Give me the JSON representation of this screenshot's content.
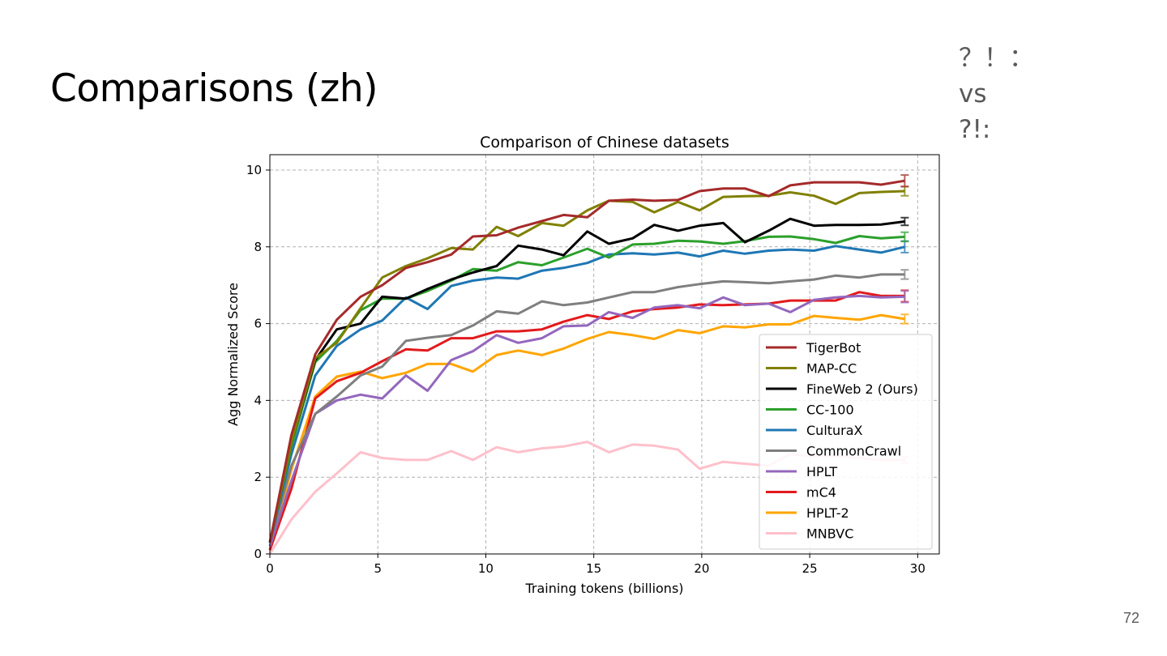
{
  "slide": {
    "title": "Comparisons (zh)",
    "corner_note": [
      "？！：",
      "vs",
      "?!:"
    ],
    "page_number": "72"
  },
  "chart_data": {
    "type": "line",
    "title": "Comparison of Chinese datasets",
    "xlabel": "Training tokens (billions)",
    "ylabel": "Agg Normalized Score",
    "xlim": [
      0,
      31
    ],
    "ylim": [
      0,
      10.4
    ],
    "xticks": [
      0,
      5,
      10,
      15,
      20,
      25,
      30
    ],
    "yticks": [
      0,
      2,
      4,
      6,
      8,
      10
    ],
    "grid": true,
    "legend_position": "lower-right",
    "x": [
      0,
      1,
      2.1,
      3.1,
      4.2,
      5.2,
      6.3,
      7.3,
      8.4,
      9.4,
      10.5,
      11.5,
      12.6,
      13.6,
      14.7,
      15.7,
      16.8,
      17.8,
      18.9,
      19.9,
      21,
      22,
      23.1,
      24.1,
      25.2,
      26.2,
      27.3,
      28.3,
      29.4
    ],
    "series": [
      {
        "name": "TigerBot",
        "color": "#a52a2a",
        "error": 0.15,
        "values": [
          0.3,
          3.1,
          5.2,
          6.1,
          6.7,
          7.0,
          7.45,
          7.6,
          7.8,
          8.27,
          8.3,
          8.5,
          8.67,
          8.83,
          8.77,
          9.2,
          9.23,
          9.2,
          9.22,
          9.45,
          9.52,
          9.52,
          9.32,
          9.6,
          9.68,
          9.68,
          9.68,
          9.62,
          9.72
        ]
      },
      {
        "name": "MAP-CC",
        "color": "#808000",
        "error": 0.12,
        "values": [
          0.3,
          2.9,
          5.1,
          5.5,
          6.4,
          7.2,
          7.5,
          7.7,
          7.97,
          7.93,
          8.52,
          8.28,
          8.62,
          8.55,
          8.95,
          9.2,
          9.17,
          8.9,
          9.17,
          8.95,
          9.3,
          9.32,
          9.33,
          9.42,
          9.33,
          9.12,
          9.4,
          9.43,
          9.45
        ]
      },
      {
        "name": "FineWeb 2 (Ours)",
        "color": "#000000",
        "error": 0.1,
        "values": [
          0.3,
          2.9,
          5.05,
          5.85,
          6.0,
          6.7,
          6.65,
          6.9,
          7.15,
          7.33,
          7.5,
          8.03,
          7.93,
          7.78,
          8.4,
          8.08,
          8.22,
          8.57,
          8.42,
          8.55,
          8.62,
          8.12,
          8.42,
          8.73,
          8.55,
          8.57,
          8.57,
          8.58,
          8.66
        ]
      },
      {
        "name": "CC-100",
        "color": "#2ca02c",
        "error": 0.12,
        "values": [
          0.3,
          2.8,
          5.0,
          5.55,
          6.35,
          6.65,
          6.65,
          6.85,
          7.12,
          7.42,
          7.38,
          7.6,
          7.52,
          7.72,
          7.95,
          7.72,
          8.06,
          8.08,
          8.16,
          8.14,
          8.08,
          8.15,
          8.26,
          8.27,
          8.2,
          8.1,
          8.28,
          8.22,
          8.26
        ]
      },
      {
        "name": "CulturaX",
        "color": "#1f77b4",
        "error": 0.15,
        "values": [
          0.3,
          2.6,
          4.65,
          5.42,
          5.85,
          6.08,
          6.68,
          6.38,
          6.98,
          7.12,
          7.2,
          7.17,
          7.38,
          7.45,
          7.58,
          7.8,
          7.83,
          7.8,
          7.85,
          7.75,
          7.9,
          7.82,
          7.9,
          7.93,
          7.9,
          8.02,
          7.93,
          7.85,
          8.0
        ]
      },
      {
        "name": "CommonCrawl",
        "color": "#7f7f7f",
        "error": 0.12,
        "values": [
          0.3,
          2.3,
          3.65,
          4.1,
          4.65,
          4.88,
          5.55,
          5.63,
          5.7,
          5.95,
          6.32,
          6.26,
          6.58,
          6.48,
          6.55,
          6.68,
          6.82,
          6.82,
          6.95,
          7.03,
          7.1,
          7.08,
          7.05,
          7.1,
          7.15,
          7.25,
          7.2,
          7.28,
          7.28
        ]
      },
      {
        "name": "HPLT",
        "color": "#9467bd",
        "error": 0.15,
        "values": [
          0.2,
          1.9,
          3.65,
          4.0,
          4.15,
          4.05,
          4.65,
          4.25,
          5.05,
          5.28,
          5.7,
          5.5,
          5.62,
          5.93,
          5.95,
          6.3,
          6.15,
          6.42,
          6.48,
          6.4,
          6.68,
          6.48,
          6.52,
          6.3,
          6.62,
          6.68,
          6.72,
          6.68,
          6.7
        ]
      },
      {
        "name": "mC4",
        "color": "#e31a1c",
        "error": 0.15,
        "values": [
          0.1,
          1.7,
          4.05,
          4.5,
          4.72,
          5.02,
          5.33,
          5.3,
          5.62,
          5.62,
          5.8,
          5.8,
          5.85,
          6.05,
          6.22,
          6.12,
          6.32,
          6.38,
          6.42,
          6.5,
          6.48,
          6.5,
          6.52,
          6.6,
          6.6,
          6.6,
          6.82,
          6.72,
          6.72
        ]
      },
      {
        "name": "HPLT-2",
        "color": "#ffa500",
        "error": 0.12,
        "values": [
          0.1,
          2.2,
          4.1,
          4.62,
          4.75,
          4.58,
          4.72,
          4.95,
          4.95,
          4.75,
          5.18,
          5.3,
          5.18,
          5.35,
          5.6,
          5.78,
          5.7,
          5.6,
          5.83,
          5.75,
          5.93,
          5.9,
          5.98,
          5.98,
          6.2,
          6.15,
          6.1,
          6.22,
          6.12
        ]
      },
      {
        "name": "MNBVC",
        "color": "#ffc0cb",
        "error": 0.08,
        "values": [
          0.0,
          0.9,
          1.62,
          2.1,
          2.65,
          2.5,
          2.45,
          2.45,
          2.68,
          2.45,
          2.78,
          2.65,
          2.75,
          2.8,
          2.92,
          2.65,
          2.85,
          2.82,
          2.72,
          2.22,
          2.4,
          2.35,
          2.3,
          2.6,
          2.55,
          2.55,
          2.5,
          2.45,
          2.45
        ]
      }
    ]
  }
}
